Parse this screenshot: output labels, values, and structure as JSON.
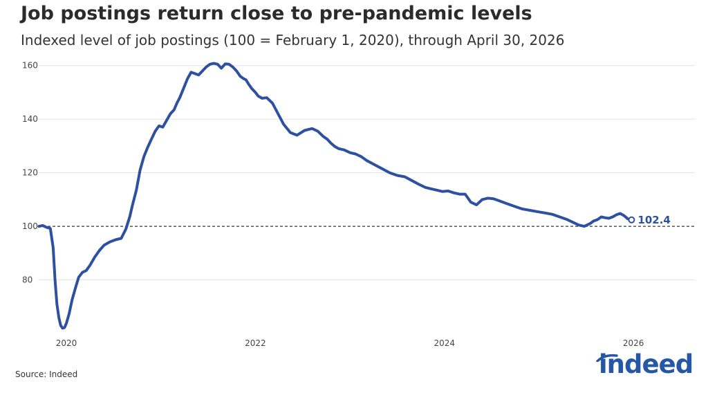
{
  "header": {
    "title": "Job postings return close to pre-pandemic levels",
    "subtitle": "Indexed level of job postings (100 = February 1, 2020), through April 30, 2026"
  },
  "footer": {
    "source": "Source: Indeed"
  },
  "logo": {
    "text": "indeed",
    "color": "#2557a7"
  },
  "chart_data": {
    "type": "line",
    "title": "Job postings return close to pre-pandemic levels",
    "subtitle": "Indexed level of job postings (100 = February 1, 2020), through April 30, 2026",
    "xlabel": "",
    "ylabel": "",
    "xlim": [
      2019.7,
      2026.65
    ],
    "ylim": [
      60,
      162
    ],
    "x_ticks": [
      2020,
      2022,
      2024,
      2026
    ],
    "x_tick_labels": [
      "2020",
      "2022",
      "2024",
      "2026"
    ],
    "y_ticks": [
      80,
      100,
      120,
      140,
      160
    ],
    "y_tick_labels": [
      "80",
      "100",
      "120",
      "140",
      "160"
    ],
    "grid": "horizontal",
    "reference_line": {
      "y": 100,
      "style": "dashed"
    },
    "end_label": "102.4",
    "series_color": "#2d50a0",
    "series": [
      {
        "x": [
          2019.71,
          2019.75,
          2019.79,
          2019.83,
          2019.86,
          2019.88,
          2019.9,
          2019.92,
          2019.94,
          2019.96,
          2019.98,
          2020.0,
          2020.03,
          2020.06,
          2020.1,
          2020.13,
          2020.17,
          2020.21,
          2020.25,
          2020.3,
          2020.35,
          2020.4,
          2020.46,
          2020.52,
          2020.58,
          2020.63,
          2020.67,
          2020.7,
          2020.74,
          2020.78,
          2020.82,
          2020.86,
          2020.9,
          2020.94,
          2020.98,
          2021.02,
          2021.06,
          2021.1,
          2021.14,
          2021.17,
          2021.2,
          2021.24,
          2021.28,
          2021.32,
          2021.36,
          2021.4,
          2021.44,
          2021.48,
          2021.52,
          2021.56,
          2021.6,
          2021.64,
          2021.68,
          2021.72,
          2021.76,
          2021.8,
          2021.84,
          2021.88,
          2021.9,
          2021.93,
          2021.96,
          2022.0,
          2022.03,
          2022.07,
          2022.12,
          2022.18,
          2022.24,
          2022.3,
          2022.37,
          2022.44,
          2022.52,
          2022.6,
          2022.66,
          2022.72,
          2022.76,
          2022.8,
          2022.84,
          2022.88,
          2022.94,
          2023.0,
          2023.06,
          2023.12,
          2023.18,
          2023.26,
          2023.34,
          2023.42,
          2023.5,
          2023.58,
          2023.66,
          2023.74,
          2023.8,
          2023.86,
          2023.92,
          2023.98,
          2024.04,
          2024.1,
          2024.16,
          2024.22,
          2024.28,
          2024.34,
          2024.4,
          2024.46,
          2024.52,
          2024.58,
          2024.66,
          2024.74,
          2024.82,
          2024.9,
          2024.98,
          2025.06,
          2025.14,
          2025.22,
          2025.3,
          2025.36,
          2025.42,
          2025.48,
          2025.54,
          2025.58,
          2025.62,
          2025.66,
          2025.7,
          2025.74,
          2025.78,
          2025.82,
          2025.86,
          2025.9,
          2025.94,
          2025.98
        ],
        "values": [
          100.0,
          100.3,
          99.6,
          99.2,
          92.0,
          80.0,
          71.0,
          66.0,
          63.0,
          62.0,
          62.2,
          63.8,
          67.5,
          72.5,
          77.5,
          81.0,
          82.8,
          83.5,
          85.5,
          88.5,
          91.0,
          93.0,
          94.2,
          95.0,
          95.5,
          99.0,
          103.5,
          108.0,
          113.5,
          121.0,
          126.0,
          129.5,
          132.5,
          135.5,
          137.5,
          137.0,
          139.5,
          142.0,
          143.5,
          146.0,
          148.0,
          151.5,
          155.0,
          157.5,
          157.0,
          156.5,
          158.0,
          159.5,
          160.5,
          160.8,
          160.5,
          159.0,
          160.6,
          160.5,
          159.5,
          158.0,
          156.0,
          155.0,
          154.7,
          153.0,
          151.5,
          150.0,
          148.6,
          147.8,
          148.0,
          146.0,
          142.0,
          138.0,
          135.0,
          134.0,
          135.8,
          136.5,
          135.5,
          133.5,
          132.5,
          131.0,
          129.8,
          129.0,
          128.5,
          127.5,
          127.0,
          126.0,
          124.5,
          123.0,
          121.5,
          120.0,
          119.0,
          118.5,
          117.0,
          115.5,
          114.5,
          114.0,
          113.5,
          113.0,
          113.2,
          112.5,
          112.0,
          112.0,
          109.0,
          108.0,
          110.0,
          110.5,
          110.3,
          109.5,
          108.5,
          107.5,
          106.5,
          106.0,
          105.5,
          105.0,
          104.5,
          103.5,
          102.5,
          101.5,
          100.5,
          100.0,
          101.0,
          102.0,
          102.5,
          103.5,
          103.2,
          103.0,
          103.5,
          104.3,
          104.8,
          104.0,
          102.8,
          102.4
        ]
      }
    ]
  }
}
